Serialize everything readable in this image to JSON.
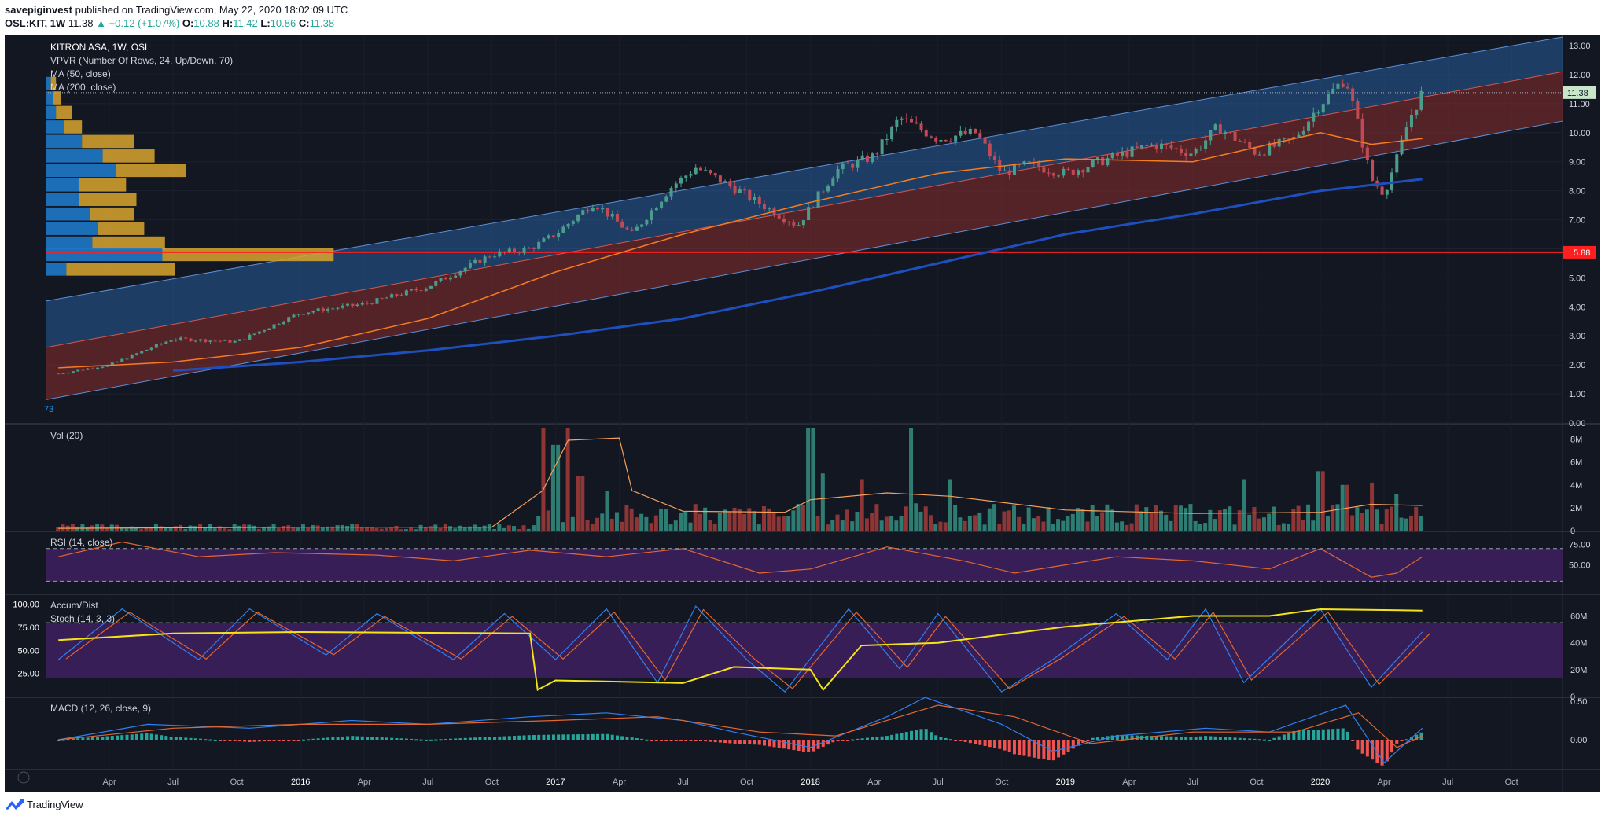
{
  "header": {
    "author": "savepiginvest",
    "published_text": " published on TradingView.com, May 22, 2020 18:02:09 UTC",
    "symbol": "OSL:KIT, 1W",
    "price": "11.38",
    "change": "▲ +0.12 (+1.07%)",
    "o_label": "O:",
    "o_value": "10.88",
    "h_label": "H:",
    "h_value": "11.42",
    "l_label": "L:",
    "l_value": "10.86",
    "c_label": "C:",
    "c_value": "11.38"
  },
  "footer": {
    "brand": "TradingView"
  },
  "colors": {
    "background": "#131722",
    "up": "#26a69a",
    "down": "#ef5350",
    "channel_upper": "#2a6cb8",
    "channel_lower": "#8b2d2d",
    "ma50": "#f57c1f",
    "ma200": "#1f4fbf",
    "rsi_fill": "#3d1f5c",
    "accum_dist": "#f5e31a",
    "support_line": "#ff1f1f"
  },
  "chart_data": [
    {
      "type": "line",
      "name": "price",
      "legend": [
        "KITRON ASA, 1W, OSL",
        "VPVR (Number Of Rows, 24, Up/Down, 70)",
        "MA (50, close)",
        "MA (200, close)"
      ],
      "corner_label": "73",
      "x_ticks": [
        "Apr",
        "Jul",
        "Oct",
        "2016",
        "Apr",
        "Jul",
        "Oct",
        "2017",
        "Apr",
        "Jul",
        "Oct",
        "2018",
        "Apr",
        "Jul",
        "Oct",
        "2019",
        "Apr",
        "Jul",
        "Oct",
        "2020",
        "Apr",
        "Jul",
        "Oct"
      ],
      "y_ticks": [
        "13.00",
        "12.00",
        "11.00",
        "10.00",
        "9.00",
        "8.00",
        "7.00",
        "6.00",
        "5.00",
        "4.00",
        "3.00",
        "2.00",
        "1.00",
        "0.00"
      ],
      "ylim": [
        0,
        13.3
      ],
      "last_price_label": "11.38",
      "support_label": "5.88",
      "support_value": 5.88,
      "close": [
        [
          2015.05,
          1.7
        ],
        [
          2015.25,
          2.0
        ],
        [
          2015.5,
          2.9
        ],
        [
          2015.75,
          2.8
        ],
        [
          2016.0,
          3.8
        ],
        [
          2016.25,
          4.1
        ],
        [
          2016.5,
          4.7
        ],
        [
          2016.75,
          5.8
        ],
        [
          2016.9,
          6.0
        ],
        [
          2017.0,
          6.5
        ],
        [
          2017.15,
          7.6
        ],
        [
          2017.3,
          6.5
        ],
        [
          2017.45,
          8.1
        ],
        [
          2017.55,
          8.8
        ],
        [
          2017.7,
          8.1
        ],
        [
          2017.85,
          7.3
        ],
        [
          2017.95,
          6.8
        ],
        [
          2018.1,
          8.7
        ],
        [
          2018.25,
          9.2
        ],
        [
          2018.35,
          10.5
        ],
        [
          2018.5,
          9.8
        ],
        [
          2018.65,
          10.0
        ],
        [
          2018.75,
          8.6
        ],
        [
          2018.85,
          8.9
        ],
        [
          2019.0,
          8.6
        ],
        [
          2019.2,
          9.2
        ],
        [
          2019.35,
          9.6
        ],
        [
          2019.5,
          9.3
        ],
        [
          2019.6,
          10.2
        ],
        [
          2019.75,
          9.3
        ],
        [
          2019.9,
          9.8
        ],
        [
          2020.0,
          11.0
        ],
        [
          2020.1,
          11.9
        ],
        [
          2020.15,
          10.2
        ],
        [
          2020.2,
          8.4
        ],
        [
          2020.25,
          7.9
        ],
        [
          2020.3,
          9.1
        ],
        [
          2020.35,
          10.5
        ],
        [
          2020.4,
          11.38
        ]
      ],
      "ma50": [
        [
          2015.05,
          1.9
        ],
        [
          2015.5,
          2.1
        ],
        [
          2016.0,
          2.6
        ],
        [
          2016.5,
          3.6
        ],
        [
          2017.0,
          5.2
        ],
        [
          2017.5,
          6.5
        ],
        [
          2018.0,
          7.6
        ],
        [
          2018.5,
          8.6
        ],
        [
          2019.0,
          9.1
        ],
        [
          2019.5,
          9.0
        ],
        [
          2020.0,
          10.0
        ],
        [
          2020.2,
          9.6
        ],
        [
          2020.4,
          9.8
        ]
      ],
      "ma200": [
        [
          2015.5,
          1.8
        ],
        [
          2016.0,
          2.1
        ],
        [
          2016.5,
          2.5
        ],
        [
          2017.0,
          3.0
        ],
        [
          2017.5,
          3.6
        ],
        [
          2018.0,
          4.5
        ],
        [
          2018.5,
          5.5
        ],
        [
          2019.0,
          6.5
        ],
        [
          2019.5,
          7.2
        ],
        [
          2020.0,
          8.0
        ],
        [
          2020.4,
          8.4
        ]
      ],
      "channel": {
        "upper_start": [
          2015.0,
          4.2
        ],
        "upper_end": [
          2020.95,
          13.3
        ],
        "mid_start": [
          2015.0,
          2.6
        ],
        "mid_end": [
          2020.95,
          12.1
        ],
        "lower_start": [
          2015.0,
          0.8
        ],
        "lower_end": [
          2020.95,
          10.4
        ]
      },
      "volume_profile": [
        {
          "price": 11.7,
          "up": 0.02,
          "down": 0.02
        },
        {
          "price": 11.2,
          "up": 0.03,
          "down": 0.03
        },
        {
          "price": 10.7,
          "up": 0.04,
          "down": 0.06
        },
        {
          "price": 10.2,
          "up": 0.07,
          "down": 0.07
        },
        {
          "price": 9.7,
          "up": 0.14,
          "down": 0.2
        },
        {
          "price": 9.2,
          "up": 0.22,
          "down": 0.2
        },
        {
          "price": 8.7,
          "up": 0.27,
          "down": 0.27
        },
        {
          "price": 8.2,
          "up": 0.13,
          "down": 0.18
        },
        {
          "price": 7.7,
          "up": 0.13,
          "down": 0.22
        },
        {
          "price": 7.2,
          "up": 0.17,
          "down": 0.17
        },
        {
          "price": 6.7,
          "up": 0.2,
          "down": 0.18
        },
        {
          "price": 6.2,
          "up": 0.18,
          "down": 0.28
        },
        {
          "price": 5.8,
          "up": 0.45,
          "down": 0.66
        },
        {
          "price": 5.3,
          "up": 0.08,
          "down": 0.42
        }
      ]
    },
    {
      "type": "bar",
      "name": "volume",
      "legend": "Vol (20)",
      "y_ticks": [
        "8M",
        "6M",
        "4M",
        "2M",
        "0"
      ],
      "ylim": [
        0,
        9
      ],
      "spikes": [
        [
          2016.95,
          9.0
        ],
        [
          2017.0,
          7.5
        ],
        [
          2017.05,
          9.0
        ],
        [
          2017.1,
          4.8
        ],
        [
          2017.2,
          3.5
        ],
        [
          2018.0,
          9.0
        ],
        [
          2018.05,
          5.0
        ],
        [
          2018.2,
          4.5
        ],
        [
          2018.4,
          9.0
        ],
        [
          2018.55,
          4.5
        ],
        [
          2019.7,
          4.5
        ],
        [
          2020.0,
          5.2
        ],
        [
          2020.1,
          4.0
        ],
        [
          2020.2,
          4.2
        ],
        [
          2020.3,
          3.2
        ]
      ],
      "ma20": [
        [
          2015.05,
          0.2
        ],
        [
          2016.0,
          0.3
        ],
        [
          2016.75,
          0.3
        ],
        [
          2016.95,
          3.5
        ],
        [
          2017.05,
          7.9
        ],
        [
          2017.25,
          8.1
        ],
        [
          2017.3,
          3.5
        ],
        [
          2017.5,
          1.7
        ],
        [
          2017.9,
          1.6
        ],
        [
          2018.0,
          2.7
        ],
        [
          2018.3,
          3.3
        ],
        [
          2018.55,
          3.0
        ],
        [
          2019.0,
          1.8
        ],
        [
          2019.5,
          1.5
        ],
        [
          2020.0,
          1.6
        ],
        [
          2020.2,
          2.3
        ],
        [
          2020.4,
          2.2
        ]
      ]
    },
    {
      "type": "line",
      "name": "rsi",
      "legend": "RSI (14, close)",
      "y_ticks": [
        "75.00",
        "50.00"
      ],
      "bands": [
        70,
        30
      ],
      "values": [
        [
          2015.05,
          60
        ],
        [
          2015.3,
          78
        ],
        [
          2015.6,
          60
        ],
        [
          2015.9,
          65
        ],
        [
          2016.3,
          62
        ],
        [
          2016.6,
          55
        ],
        [
          2016.9,
          68
        ],
        [
          2017.2,
          60
        ],
        [
          2017.5,
          70
        ],
        [
          2017.8,
          40
        ],
        [
          2018.0,
          45
        ],
        [
          2018.3,
          72
        ],
        [
          2018.6,
          55
        ],
        [
          2018.8,
          40
        ],
        [
          2019.2,
          60
        ],
        [
          2019.5,
          55
        ],
        [
          2019.8,
          45
        ],
        [
          2020.0,
          70
        ],
        [
          2020.2,
          35
        ],
        [
          2020.3,
          40
        ],
        [
          2020.4,
          60
        ]
      ]
    },
    {
      "type": "line",
      "name": "stoch_accum",
      "legend": [
        "Accum/Dist",
        "Stoch (14, 3, 3)"
      ],
      "y_ticks_left": [
        "100.00",
        "75.00",
        "50.00",
        "25.00"
      ],
      "y_ticks_right": [
        "60M",
        "40M",
        "20M",
        "0"
      ],
      "stoch_k": [
        [
          2015.05,
          40
        ],
        [
          2015.3,
          95
        ],
        [
          2015.6,
          40
        ],
        [
          2015.8,
          95
        ],
        [
          2016.1,
          45
        ],
        [
          2016.3,
          90
        ],
        [
          2016.6,
          40
        ],
        [
          2016.8,
          90
        ],
        [
          2017.0,
          40
        ],
        [
          2017.2,
          95
        ],
        [
          2017.4,
          15
        ],
        [
          2017.55,
          98
        ],
        [
          2017.75,
          40
        ],
        [
          2017.9,
          5
        ],
        [
          2018.15,
          95
        ],
        [
          2018.35,
          30
        ],
        [
          2018.5,
          90
        ],
        [
          2018.75,
          5
        ],
        [
          2018.95,
          40
        ],
        [
          2019.2,
          90
        ],
        [
          2019.4,
          40
        ],
        [
          2019.55,
          95
        ],
        [
          2019.7,
          15
        ],
        [
          2020.0,
          95
        ],
        [
          2020.2,
          10
        ],
        [
          2020.4,
          70
        ]
      ],
      "accum_dist": [
        [
          2015.05,
          42
        ],
        [
          2015.5,
          47
        ],
        [
          2016.0,
          48
        ],
        [
          2016.9,
          47
        ],
        [
          2016.93,
          5
        ],
        [
          2017.0,
          12
        ],
        [
          2017.5,
          10
        ],
        [
          2017.7,
          22
        ],
        [
          2018.0,
          20
        ],
        [
          2018.05,
          5
        ],
        [
          2018.2,
          38
        ],
        [
          2018.5,
          40
        ],
        [
          2019.0,
          52
        ],
        [
          2019.5,
          60
        ],
        [
          2019.8,
          60
        ],
        [
          2020.0,
          65
        ],
        [
          2020.4,
          64
        ]
      ]
    },
    {
      "type": "bar",
      "name": "macd",
      "legend": "MACD (12, 26, close, 9)",
      "y_ticks": [
        "0.50",
        "0.00"
      ],
      "macd_line": [
        [
          2015.05,
          0.0
        ],
        [
          2015.4,
          0.2
        ],
        [
          2015.8,
          0.15
        ],
        [
          2016.2,
          0.25
        ],
        [
          2016.5,
          0.2
        ],
        [
          2016.9,
          0.3
        ],
        [
          2017.2,
          0.35
        ],
        [
          2017.5,
          0.25
        ],
        [
          2017.7,
          0.1
        ],
        [
          2018.0,
          -0.1
        ],
        [
          2018.3,
          0.3
        ],
        [
          2018.45,
          0.55
        ],
        [
          2018.75,
          0.2
        ],
        [
          2018.95,
          -0.15
        ],
        [
          2019.2,
          0.05
        ],
        [
          2019.55,
          0.15
        ],
        [
          2019.8,
          0.1
        ],
        [
          2020.1,
          0.45
        ],
        [
          2020.25,
          -0.3
        ],
        [
          2020.4,
          0.15
        ]
      ],
      "signal_line": [
        [
          2015.05,
          0.0
        ],
        [
          2015.5,
          0.15
        ],
        [
          2016.0,
          0.2
        ],
        [
          2016.5,
          0.2
        ],
        [
          2017.0,
          0.25
        ],
        [
          2017.4,
          0.3
        ],
        [
          2017.8,
          0.1
        ],
        [
          2018.1,
          0.05
        ],
        [
          2018.5,
          0.45
        ],
        [
          2018.8,
          0.3
        ],
        [
          2019.1,
          -0.05
        ],
        [
          2019.5,
          0.1
        ],
        [
          2019.9,
          0.1
        ],
        [
          2020.15,
          0.35
        ],
        [
          2020.3,
          -0.1
        ],
        [
          2020.4,
          0.05
        ]
      ]
    }
  ]
}
